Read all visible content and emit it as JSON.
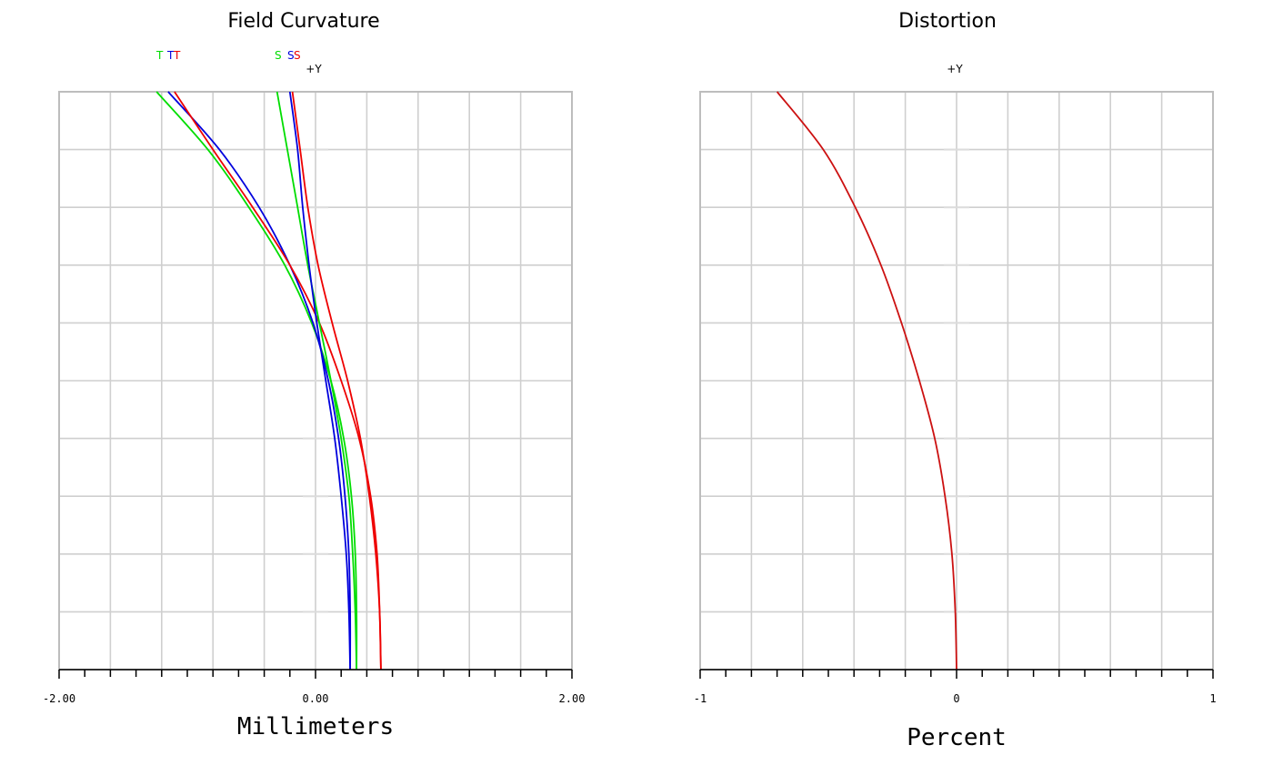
{
  "chart_data": [
    {
      "type": "line",
      "title": "Field Curvature",
      "xlabel": "Millimeters",
      "ylabel": "",
      "xlim": [
        -2.0,
        2.0
      ],
      "ylim": [
        0,
        1
      ],
      "x_tick_labels": [
        "-2.00",
        "0.00",
        "2.00"
      ],
      "y_axis_label": "+Y",
      "grid": true,
      "legend": [
        {
          "text": "T",
          "color": "#00dd00"
        },
        {
          "text": "T",
          "color": "#0000dd"
        },
        {
          "text": "T",
          "color": "#ee0000"
        },
        {
          "text": "S",
          "color": "#00dd00"
        },
        {
          "text": "S",
          "color": "#0000dd"
        },
        {
          "text": "S",
          "color": "#ee0000"
        }
      ],
      "series": [
        {
          "color": "#00dd00",
          "kind": "T",
          "x": [
            0.32,
            0.32,
            0.31,
            0.28,
            0.22,
            0.12,
            -0.03,
            -0.24,
            -0.52,
            -0.84,
            -1.24
          ],
          "y": [
            0,
            0.1,
            0.2,
            0.3,
            0.4,
            0.5,
            0.6,
            0.7,
            0.8,
            0.9,
            1.0
          ]
        },
        {
          "color": "#0000dd",
          "kind": "T",
          "x": [
            0.27,
            0.27,
            0.26,
            0.23,
            0.18,
            0.1,
            -0.02,
            -0.2,
            -0.44,
            -0.75,
            -1.15
          ],
          "y": [
            0,
            0.1,
            0.2,
            0.3,
            0.4,
            0.5,
            0.6,
            0.7,
            0.8,
            0.9,
            1.0
          ]
        },
        {
          "color": "#ee0000",
          "kind": "T",
          "x": [
            0.51,
            0.5,
            0.48,
            0.43,
            0.34,
            0.2,
            0.03,
            -0.2,
            -0.49,
            -0.8,
            -1.1
          ],
          "y": [
            0,
            0.1,
            0.2,
            0.3,
            0.4,
            0.5,
            0.6,
            0.7,
            0.8,
            0.9,
            1.0
          ]
        },
        {
          "color": "#00dd00",
          "kind": "S",
          "x": [
            0.32,
            0.31,
            0.29,
            0.26,
            0.2,
            0.12,
            0.03,
            -0.06,
            -0.14,
            -0.22,
            -0.3
          ],
          "y": [
            0,
            0.1,
            0.2,
            0.3,
            0.4,
            0.5,
            0.6,
            0.7,
            0.8,
            0.9,
            1.0
          ]
        },
        {
          "color": "#0000dd",
          "kind": "S",
          "x": [
            0.27,
            0.26,
            0.24,
            0.2,
            0.15,
            0.08,
            0.01,
            -0.05,
            -0.1,
            -0.14,
            -0.2
          ],
          "y": [
            0,
            0.1,
            0.2,
            0.3,
            0.4,
            0.5,
            0.6,
            0.7,
            0.8,
            0.9,
            1.0
          ]
        },
        {
          "color": "#ee0000",
          "kind": "S",
          "x": [
            0.51,
            0.5,
            0.47,
            0.42,
            0.35,
            0.25,
            0.13,
            0.02,
            -0.06,
            -0.12,
            -0.18
          ],
          "y": [
            0,
            0.1,
            0.2,
            0.3,
            0.4,
            0.5,
            0.6,
            0.7,
            0.8,
            0.9,
            1.0
          ]
        }
      ]
    },
    {
      "type": "line",
      "title": "Distortion",
      "xlabel": "Percent",
      "ylabel": "",
      "xlim": [
        -1,
        1
      ],
      "ylim": [
        0,
        1
      ],
      "x_tick_labels": [
        "-1",
        "0",
        "1"
      ],
      "y_axis_label": "+Y",
      "grid": true,
      "series": [
        {
          "color": "#cc1111",
          "x": [
            0.0,
            -0.005,
            -0.018,
            -0.045,
            -0.085,
            -0.145,
            -0.215,
            -0.295,
            -0.395,
            -0.52,
            -0.7
          ],
          "y": [
            0,
            0.1,
            0.2,
            0.3,
            0.4,
            0.5,
            0.6,
            0.7,
            0.8,
            0.9,
            1.0
          ]
        }
      ]
    }
  ]
}
